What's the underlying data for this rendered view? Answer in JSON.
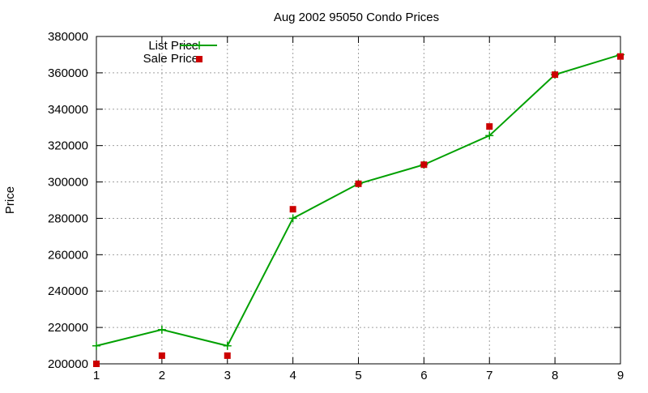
{
  "chart_data": {
    "type": "line",
    "title": "Aug 2002 95050 Condo Prices",
    "xlabel": "",
    "ylabel": "Price",
    "xlim": [
      1,
      9
    ],
    "ylim": [
      200000,
      380000
    ],
    "xticks": [
      1,
      2,
      3,
      4,
      5,
      6,
      7,
      8,
      9
    ],
    "yticks": [
      200000,
      220000,
      240000,
      260000,
      280000,
      300000,
      320000,
      340000,
      360000,
      380000
    ],
    "grid": true,
    "legend_position": "top-left",
    "series": [
      {
        "name": "List Price",
        "style": "line+plus",
        "color": "#00a000",
        "x": [
          1,
          2,
          3,
          4,
          5,
          6,
          7,
          8,
          9
        ],
        "y": [
          209900,
          218800,
          209900,
          280000,
          299000,
          309500,
          325500,
          359000,
          370000
        ]
      },
      {
        "name": "Sale Price",
        "style": "square",
        "color": "#cc0000",
        "x": [
          1,
          2,
          3,
          4,
          5,
          6,
          7,
          8,
          9
        ],
        "y": [
          200000,
          204500,
          204500,
          285000,
          299000,
          309500,
          330500,
          359000,
          369000
        ]
      }
    ]
  }
}
